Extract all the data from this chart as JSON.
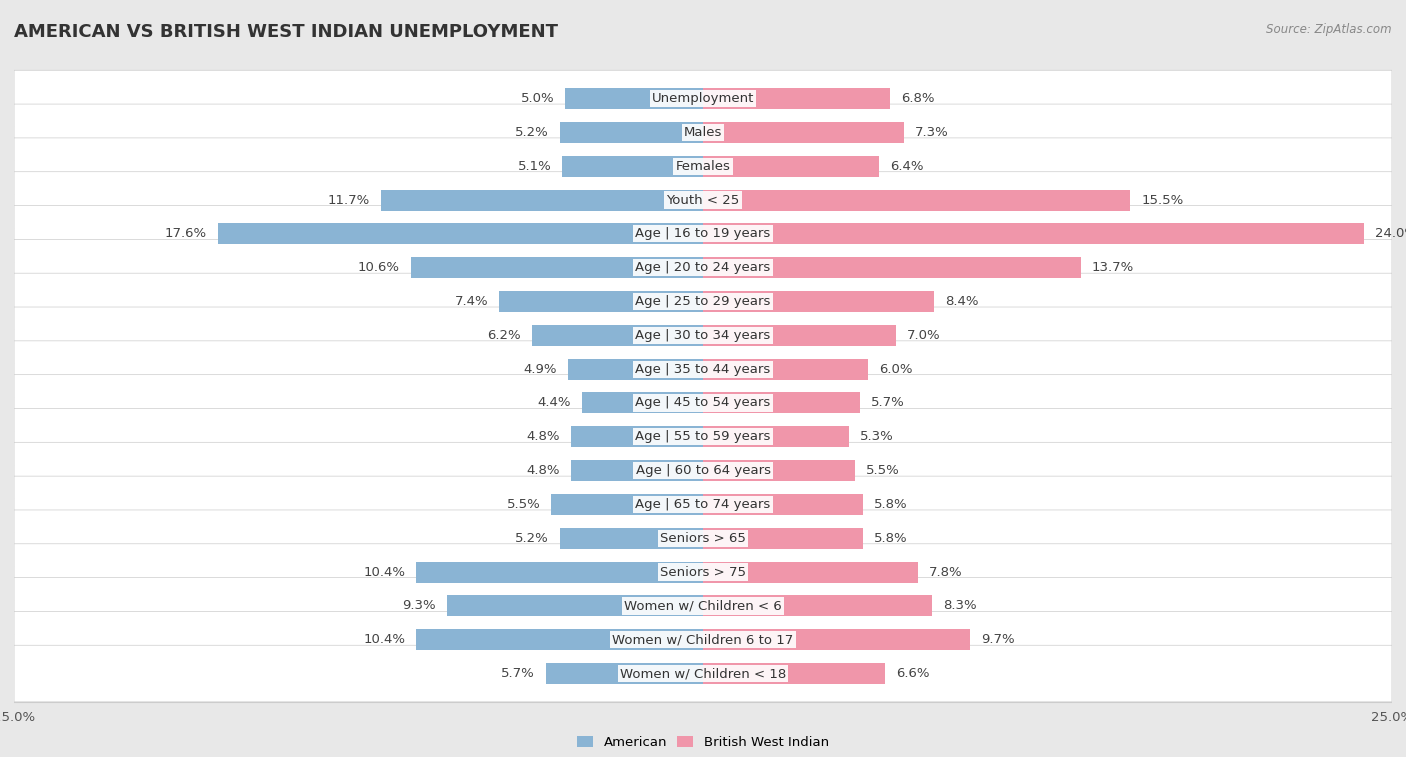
{
  "title": "AMERICAN VS BRITISH WEST INDIAN UNEMPLOYMENT",
  "source": "Source: ZipAtlas.com",
  "categories": [
    "Unemployment",
    "Males",
    "Females",
    "Youth < 25",
    "Age | 16 to 19 years",
    "Age | 20 to 24 years",
    "Age | 25 to 29 years",
    "Age | 30 to 34 years",
    "Age | 35 to 44 years",
    "Age | 45 to 54 years",
    "Age | 55 to 59 years",
    "Age | 60 to 64 years",
    "Age | 65 to 74 years",
    "Seniors > 65",
    "Seniors > 75",
    "Women w/ Children < 6",
    "Women w/ Children 6 to 17",
    "Women w/ Children < 18"
  ],
  "american": [
    5.0,
    5.2,
    5.1,
    11.7,
    17.6,
    10.6,
    7.4,
    6.2,
    4.9,
    4.4,
    4.8,
    4.8,
    5.5,
    5.2,
    10.4,
    9.3,
    10.4,
    5.7
  ],
  "british_west_indian": [
    6.8,
    7.3,
    6.4,
    15.5,
    24.0,
    13.7,
    8.4,
    7.0,
    6.0,
    5.7,
    5.3,
    5.5,
    5.8,
    5.8,
    7.8,
    8.3,
    9.7,
    6.6
  ],
  "american_color": "#8ab4d4",
  "bwi_color": "#f096aa",
  "row_bg_color": "#ffffff",
  "outer_bg_color": "#e8e8e8",
  "axis_max": 25.0,
  "bar_height": 0.62,
  "title_fontsize": 13,
  "label_fontsize": 9.5,
  "value_fontsize": 9.5,
  "tick_fontsize": 9.5,
  "source_fontsize": 8.5
}
